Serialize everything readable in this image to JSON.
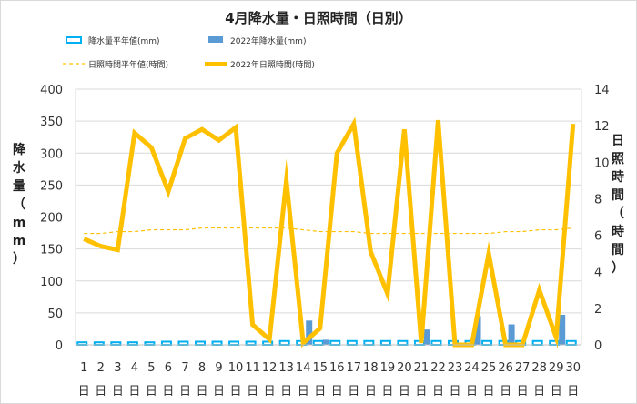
{
  "chart_data": {
    "type": "bar+line",
    "title": "4月降水量・日照時間（日別）",
    "categories": [
      "1",
      "2",
      "3",
      "4",
      "5",
      "6",
      "7",
      "8",
      "9",
      "10",
      "11",
      "12",
      "13",
      "14",
      "15",
      "16",
      "17",
      "18",
      "19",
      "20",
      "21",
      "22",
      "23",
      "24",
      "25",
      "26",
      "27",
      "28",
      "29",
      "30"
    ],
    "day_suffix": "日",
    "y_left": {
      "label": "降水量（mm）",
      "min": 0,
      "max": 400,
      "ticks": [
        0,
        50,
        100,
        150,
        200,
        250,
        300,
        350,
        400
      ]
    },
    "y_right": {
      "label": "日照時間（時間）",
      "min": 0,
      "max": 14,
      "ticks": [
        0,
        2,
        4,
        6,
        8,
        10,
        12,
        14
      ]
    },
    "series": [
      {
        "name": "降水量平年値(mm)",
        "type": "bar-outline",
        "axis": "left",
        "color": "#00b0f0",
        "values": [
          4,
          4,
          4,
          4,
          4,
          5,
          5,
          5,
          5,
          5,
          5,
          5,
          6,
          6,
          6,
          6,
          6,
          6,
          6,
          6,
          6,
          6,
          6,
          6,
          6,
          6,
          6,
          6,
          6,
          6
        ]
      },
      {
        "name": "2022年降水量(mm)",
        "type": "bar",
        "axis": "left",
        "color": "#5b9bd5",
        "values": [
          0,
          0,
          0,
          0,
          0,
          0,
          0,
          0,
          0,
          0,
          0,
          0,
          0,
          38,
          8,
          0,
          0,
          0,
          0,
          0,
          24,
          0,
          0,
          45,
          0,
          32,
          0,
          0,
          47,
          0
        ]
      },
      {
        "name": "日照時間平年値(時間)",
        "type": "line-dashed",
        "axis": "right",
        "color": "#ffc000",
        "values": [
          6.1,
          6.1,
          6.2,
          6.2,
          6.3,
          6.3,
          6.3,
          6.4,
          6.4,
          6.4,
          6.4,
          6.4,
          6.4,
          6.3,
          6.2,
          6.2,
          6.2,
          6.1,
          6.1,
          6.1,
          6.1,
          6.1,
          6.1,
          6.1,
          6.1,
          6.2,
          6.2,
          6.3,
          6.3,
          6.4
        ]
      },
      {
        "name": "2022年日照時間(時間)",
        "type": "line",
        "axis": "right",
        "color": "#ffc000",
        "values": [
          5.8,
          5.4,
          5.2,
          11.6,
          10.8,
          8.4,
          11.3,
          11.8,
          11.2,
          11.9,
          1.1,
          0.3,
          9.0,
          0.1,
          0.9,
          10.5,
          12.1,
          5.1,
          2.8,
          11.8,
          0.1,
          12.3,
          0.0,
          0.0,
          5.0,
          0.0,
          0.0,
          3.0,
          0.4,
          12.1
        ]
      }
    ]
  }
}
